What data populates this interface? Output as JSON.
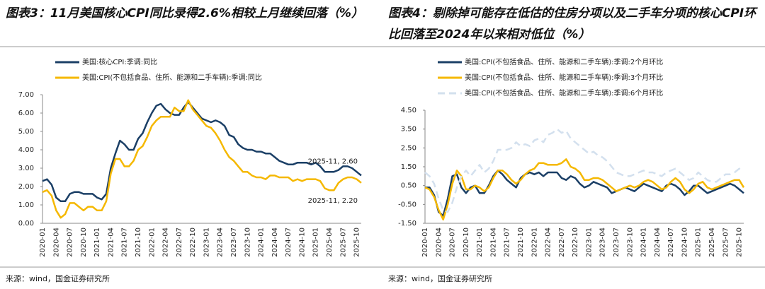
{
  "chart_data": [
    {
      "type": "line",
      "title": "图表3：11月美国核心CPI同比录得2.6%相较上月继续回落（%）",
      "source": "来源：wind，国金证券研究所",
      "categories": [
        "2020-01",
        null,
        null,
        "2020-04",
        null,
        null,
        "2020-07",
        null,
        null,
        "2020-10",
        null,
        null,
        "2021-01",
        null,
        null,
        "2021-04",
        null,
        null,
        "2021-07",
        null,
        null,
        "2021-10",
        null,
        null,
        "2022-01",
        null,
        null,
        "2022-04",
        null,
        null,
        "2022-07",
        null,
        null,
        "2022-10",
        null,
        null,
        "2023-01",
        null,
        null,
        "2023-04",
        null,
        null,
        "2023-07",
        null,
        null,
        "2023-10",
        null,
        null,
        "2024-01",
        null,
        null,
        "2024-04",
        null,
        null,
        "2024-07",
        null,
        null,
        "2024-10",
        null,
        null,
        "2025-01",
        null,
        null,
        "2025-04",
        null,
        null,
        "2025-07",
        null,
        null,
        "2025-10",
        null
      ],
      "series": [
        {
          "name": "美国:核心CPI:季调:同比",
          "color": "#1b3f66",
          "values": [
            2.3,
            2.4,
            2.1,
            1.4,
            1.2,
            1.2,
            1.6,
            1.7,
            1.7,
            1.6,
            1.6,
            1.6,
            1.4,
            1.3,
            1.6,
            3.0,
            3.8,
            4.5,
            4.3,
            4.0,
            4.0,
            4.6,
            4.9,
            5.5,
            6.0,
            6.4,
            6.5,
            6.2,
            6.0,
            5.9,
            5.9,
            6.3,
            6.6,
            6.3,
            6.0,
            5.7,
            5.6,
            5.5,
            5.6,
            5.5,
            5.3,
            4.8,
            4.7,
            4.3,
            4.1,
            4.0,
            4.0,
            3.9,
            3.9,
            3.8,
            3.8,
            3.6,
            3.4,
            3.3,
            3.2,
            3.2,
            3.3,
            3.3,
            3.3,
            3.2,
            3.3,
            3.1,
            2.8,
            2.8,
            2.8,
            2.9,
            3.1,
            3.1,
            3.0,
            2.8,
            2.6
          ]
        },
        {
          "name": "美国:CPI(不包括食品、住所、能源和二手车辆):季调:同比",
          "color": "#f5b800",
          "values": [
            1.7,
            1.8,
            1.5,
            0.7,
            0.3,
            0.5,
            1.1,
            1.1,
            0.9,
            0.7,
            0.9,
            0.9,
            0.7,
            0.7,
            1.2,
            2.7,
            3.5,
            3.5,
            3.1,
            3.1,
            3.4,
            4.0,
            4.2,
            4.7,
            5.3,
            5.6,
            5.8,
            5.8,
            5.8,
            6.3,
            6.1,
            6.1,
            6.7,
            6.2,
            5.9,
            5.6,
            5.3,
            5.2,
            4.9,
            4.5,
            4.0,
            3.6,
            3.4,
            3.1,
            2.8,
            2.8,
            2.6,
            2.5,
            2.5,
            2.4,
            2.6,
            2.6,
            2.5,
            2.5,
            2.5,
            2.3,
            2.4,
            2.3,
            2.4,
            2.4,
            2.4,
            2.3,
            1.9,
            1.8,
            1.8,
            2.2,
            2.4,
            2.5,
            2.5,
            2.4,
            2.2
          ]
        }
      ],
      "annotations": [
        "2025-11, 2.60",
        "2025-11, 2.20"
      ],
      "ylim": [
        0,
        7
      ],
      "yticks": [
        {
          "value": 0,
          "label": "0.00"
        },
        {
          "value": 1,
          "label": "1.00"
        },
        {
          "value": 2,
          "label": "2.00"
        },
        {
          "value": 3,
          "label": "3.00"
        },
        {
          "value": 4,
          "label": "4.00"
        },
        {
          "value": 5,
          "label": "5.00"
        },
        {
          "value": 6,
          "label": "6.00"
        },
        {
          "value": 7,
          "label": "7.00"
        }
      ],
      "grid": false
    },
    {
      "type": "line",
      "title": "图表4：剔除掉可能存在低估的住房分项以及二手车分项的核心CPI环比回落至2024年以来相对低位（%）",
      "source": "来源：wind，国金证券研究所",
      "categories": [
        "2020-01",
        null,
        null,
        "2020-04",
        null,
        null,
        "2020-07",
        null,
        null,
        "2020-10",
        null,
        null,
        "2021-01",
        null,
        null,
        "2021-04",
        null,
        null,
        "2021-07",
        null,
        null,
        "2021-10",
        null,
        null,
        "2022-01",
        null,
        null,
        "2022-04",
        null,
        null,
        "2022-07",
        null,
        null,
        "2022-10",
        null,
        null,
        "2023-01",
        null,
        null,
        "2023-04",
        null,
        null,
        "2023-07",
        null,
        null,
        "2023-10",
        null,
        null,
        "2024-01",
        null,
        null,
        "2024-04",
        null,
        null,
        "2024-07",
        null,
        null,
        "2024-10",
        null,
        null,
        "2025-01",
        null,
        null,
        "2025-04",
        null,
        null,
        "2025-07",
        null,
        null,
        "2025-10",
        null
      ],
      "series": [
        {
          "name": "美国:CPI(不包括食品、住所、能源和二手车辆):季调:2个月环比",
          "color": "#1b3f66",
          "values": [
            0.4,
            0.4,
            0.0,
            -0.9,
            -1.1,
            -0.2,
            1.0,
            1.1,
            0.4,
            0.1,
            0.4,
            0.5,
            0.1,
            0.1,
            0.5,
            1.0,
            1.3,
            1.1,
            0.8,
            0.6,
            0.4,
            0.9,
            1.1,
            1.2,
            1.1,
            1.2,
            1.0,
            1.2,
            1.2,
            1.2,
            0.9,
            0.8,
            1.0,
            0.9,
            0.6,
            0.4,
            0.5,
            0.7,
            0.6,
            0.5,
            0.4,
            0.1,
            0.2,
            0.3,
            0.4,
            0.3,
            0.2,
            0.4,
            0.6,
            0.5,
            0.4,
            0.3,
            0.2,
            0.5,
            0.6,
            0.5,
            0.3,
            0.0,
            0.2,
            0.5,
            0.5,
            0.3,
            0.1,
            0.2,
            0.3,
            0.4,
            0.5,
            0.6,
            0.5,
            0.3,
            0.1
          ]
        },
        {
          "name": "美国:CPI(不包括食品、住所、能源和二手车辆):季调:3个月环比",
          "color": "#f5b800",
          "values": [
            0.4,
            0.3,
            -0.1,
            -0.8,
            -1.3,
            -0.5,
            0.6,
            1.3,
            1.0,
            0.3,
            0.3,
            0.5,
            0.4,
            0.2,
            0.4,
            0.9,
            1.3,
            1.3,
            1.1,
            0.8,
            0.6,
            0.8,
            1.1,
            1.3,
            1.4,
            1.7,
            1.7,
            1.6,
            1.6,
            1.6,
            1.7,
            1.9,
            1.5,
            1.4,
            1.2,
            0.8,
            0.8,
            0.9,
            0.9,
            0.8,
            0.6,
            0.4,
            0.2,
            0.3,
            0.4,
            0.5,
            0.4,
            0.5,
            0.7,
            0.8,
            0.7,
            0.5,
            0.3,
            0.4,
            0.7,
            0.9,
            0.7,
            0.3,
            0.1,
            0.3,
            0.6,
            0.7,
            0.4,
            0.3,
            0.4,
            0.5,
            0.6,
            0.7,
            0.8,
            0.8,
            0.4
          ]
        },
        {
          "name": "美国:CPI(不包括食品、住所、能源和二手车辆):季调:6个月环比",
          "color": "#d3e0ee",
          "dash": true,
          "values": [
            1.2,
            1.0,
            0.6,
            -0.2,
            -0.8,
            -0.9,
            -0.4,
            0.4,
            1.0,
            1.3,
            1.0,
            1.3,
            1.6,
            1.2,
            1.4,
            1.8,
            2.4,
            2.4,
            2.4,
            2.5,
            2.8,
            2.6,
            2.7,
            2.6,
            2.9,
            3.0,
            2.8,
            3.2,
            3.3,
            3.5,
            3.3,
            3.4,
            3.0,
            2.8,
            2.6,
            2.4,
            2.2,
            2.3,
            2.1,
            2.0,
            1.8,
            1.5,
            1.2,
            1.1,
            1.0,
            1.0,
            1.1,
            1.2,
            1.3,
            1.2,
            1.2,
            1.1,
            1.0,
            1.2,
            1.3,
            1.4,
            1.2,
            1.0,
            0.8,
            0.9,
            1.2,
            1.0,
            0.8,
            0.7,
            0.7,
            0.9,
            1.1,
            1.1,
            1.2,
            1.4,
            1.3
          ]
        }
      ],
      "ylim": [
        -1.5,
        4.5
      ],
      "yticks": [
        {
          "value": -1.5,
          "label": "-1.50"
        },
        {
          "value": -0.5,
          "label": "-0.50"
        },
        {
          "value": 0.5,
          "label": "0.50"
        },
        {
          "value": 1.5,
          "label": "1.50"
        },
        {
          "value": 2.5,
          "label": "2.50"
        },
        {
          "value": 3.5,
          "label": "3.50"
        },
        {
          "value": 4.5,
          "label": "4.50"
        }
      ],
      "grid": false
    }
  ]
}
